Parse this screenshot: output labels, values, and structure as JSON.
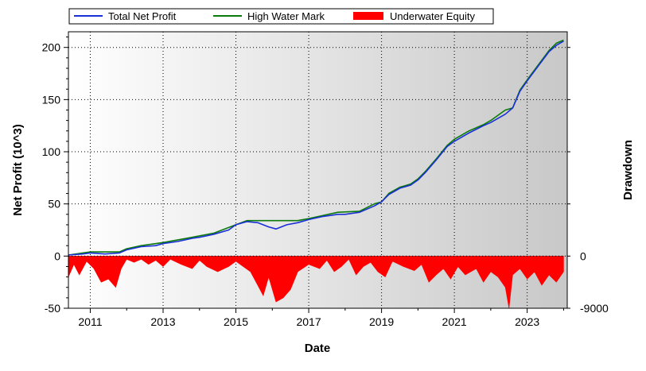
{
  "chart_data": {
    "type": "line",
    "xlabel": "Date",
    "ylabel": "Net Profit (10^3)",
    "y2label": "Drawdown",
    "x_range": [
      2010.4,
      2024.1
    ],
    "ylim": [
      -50,
      215
    ],
    "y2_ticks": [
      {
        "value": 0,
        "label": "0"
      },
      {
        "value": -9000,
        "label": "-9000"
      }
    ],
    "x_ticks": [
      "2011",
      "2013",
      "2015",
      "2017",
      "2019",
      "2021",
      "2023"
    ],
    "x_tick_years": [
      2011,
      2013,
      2015,
      2017,
      2019,
      2021,
      2023
    ],
    "y_ticks": [
      -50,
      0,
      50,
      100,
      150,
      200
    ],
    "grid": true,
    "legend_position": "top",
    "legend": [
      "Total Net Profit",
      "High Water Mark",
      "Underwater Equity"
    ],
    "colors": {
      "net_profit": "#1a2fd6",
      "high_water": "#0a7a0a",
      "underwater": "#ff0000",
      "plot_bg_left": "#ffffff",
      "plot_bg_right": "#c8c8c8"
    },
    "series": [
      {
        "name": "Total Net Profit",
        "points": [
          [
            2010.4,
            1
          ],
          [
            2010.8,
            2
          ],
          [
            2011.0,
            3
          ],
          [
            2011.4,
            2
          ],
          [
            2011.8,
            3
          ],
          [
            2012.0,
            6
          ],
          [
            2012.4,
            9
          ],
          [
            2012.8,
            10
          ],
          [
            2013.0,
            12
          ],
          [
            2013.4,
            14
          ],
          [
            2013.8,
            17
          ],
          [
            2014.0,
            18
          ],
          [
            2014.4,
            21
          ],
          [
            2014.8,
            25
          ],
          [
            2015.0,
            30
          ],
          [
            2015.3,
            33
          ],
          [
            2015.6,
            32
          ],
          [
            2015.9,
            28
          ],
          [
            2016.1,
            26
          ],
          [
            2016.4,
            30
          ],
          [
            2016.7,
            32
          ],
          [
            2017.0,
            35
          ],
          [
            2017.4,
            38
          ],
          [
            2017.8,
            40
          ],
          [
            2018.0,
            40
          ],
          [
            2018.4,
            42
          ],
          [
            2018.8,
            48
          ],
          [
            2019.0,
            52
          ],
          [
            2019.2,
            59
          ],
          [
            2019.5,
            65
          ],
          [
            2019.8,
            68
          ],
          [
            2020.0,
            73
          ],
          [
            2020.2,
            80
          ],
          [
            2020.5,
            92
          ],
          [
            2020.8,
            105
          ],
          [
            2021.0,
            110
          ],
          [
            2021.4,
            118
          ],
          [
            2021.8,
            125
          ],
          [
            2022.0,
            128
          ],
          [
            2022.4,
            136
          ],
          [
            2022.6,
            142
          ],
          [
            2022.8,
            158
          ],
          [
            2023.0,
            168
          ],
          [
            2023.3,
            182
          ],
          [
            2023.6,
            196
          ],
          [
            2023.8,
            202
          ],
          [
            2024.0,
            206
          ]
        ]
      },
      {
        "name": "High Water Mark",
        "points": [
          [
            2010.4,
            1
          ],
          [
            2011.0,
            4
          ],
          [
            2011.8,
            4
          ],
          [
            2012.0,
            7
          ],
          [
            2012.4,
            10
          ],
          [
            2013.0,
            13
          ],
          [
            2013.8,
            18
          ],
          [
            2014.4,
            22
          ],
          [
            2015.0,
            30
          ],
          [
            2015.3,
            34
          ],
          [
            2016.7,
            34
          ],
          [
            2017.0,
            36
          ],
          [
            2017.4,
            39
          ],
          [
            2017.8,
            42
          ],
          [
            2018.4,
            43
          ],
          [
            2018.8,
            50
          ],
          [
            2019.0,
            52
          ],
          [
            2019.2,
            60
          ],
          [
            2019.5,
            66
          ],
          [
            2019.8,
            69
          ],
          [
            2020.0,
            74
          ],
          [
            2020.2,
            81
          ],
          [
            2020.5,
            93
          ],
          [
            2020.8,
            106
          ],
          [
            2021.0,
            112
          ],
          [
            2021.4,
            120
          ],
          [
            2021.8,
            126
          ],
          [
            2022.0,
            130
          ],
          [
            2022.4,
            140
          ],
          [
            2022.6,
            142
          ],
          [
            2022.8,
            159
          ],
          [
            2023.0,
            169
          ],
          [
            2023.3,
            183
          ],
          [
            2023.6,
            197
          ],
          [
            2023.8,
            204
          ],
          [
            2024.0,
            207
          ]
        ]
      },
      {
        "name": "Underwater Equity",
        "points": [
          [
            2010.4,
            -20
          ],
          [
            2010.55,
            -8
          ],
          [
            2010.7,
            -18
          ],
          [
            2010.9,
            -5
          ],
          [
            2011.1,
            -12
          ],
          [
            2011.3,
            -25
          ],
          [
            2011.5,
            -22
          ],
          [
            2011.7,
            -30
          ],
          [
            2011.85,
            -12
          ],
          [
            2012.0,
            -3
          ],
          [
            2012.2,
            -6
          ],
          [
            2012.4,
            -3
          ],
          [
            2012.6,
            -8
          ],
          [
            2012.8,
            -4
          ],
          [
            2013.0,
            -10
          ],
          [
            2013.2,
            -3
          ],
          [
            2013.5,
            -8
          ],
          [
            2013.8,
            -12
          ],
          [
            2014.0,
            -4
          ],
          [
            2014.2,
            -10
          ],
          [
            2014.5,
            -15
          ],
          [
            2014.8,
            -10
          ],
          [
            2015.0,
            -5
          ],
          [
            2015.4,
            -15
          ],
          [
            2015.6,
            -28
          ],
          [
            2015.75,
            -38
          ],
          [
            2015.9,
            -20
          ],
          [
            2016.1,
            -44
          ],
          [
            2016.3,
            -40
          ],
          [
            2016.5,
            -32
          ],
          [
            2016.7,
            -15
          ],
          [
            2017.0,
            -8
          ],
          [
            2017.3,
            -12
          ],
          [
            2017.5,
            -4
          ],
          [
            2017.7,
            -15
          ],
          [
            2017.9,
            -10
          ],
          [
            2018.1,
            -3
          ],
          [
            2018.3,
            -18
          ],
          [
            2018.5,
            -10
          ],
          [
            2018.7,
            -6
          ],
          [
            2018.9,
            -15
          ],
          [
            2019.1,
            -20
          ],
          [
            2019.3,
            -5
          ],
          [
            2019.6,
            -10
          ],
          [
            2019.9,
            -14
          ],
          [
            2020.1,
            -8
          ],
          [
            2020.3,
            -25
          ],
          [
            2020.5,
            -18
          ],
          [
            2020.7,
            -12
          ],
          [
            2020.9,
            -22
          ],
          [
            2021.1,
            -10
          ],
          [
            2021.3,
            -18
          ],
          [
            2021.6,
            -12
          ],
          [
            2021.8,
            -25
          ],
          [
            2022.0,
            -15
          ],
          [
            2022.2,
            -20
          ],
          [
            2022.4,
            -30
          ],
          [
            2022.5,
            -50
          ],
          [
            2022.6,
            -18
          ],
          [
            2022.8,
            -12
          ],
          [
            2023.0,
            -22
          ],
          [
            2023.2,
            -15
          ],
          [
            2023.4,
            -28
          ],
          [
            2023.6,
            -18
          ],
          [
            2023.8,
            -25
          ],
          [
            2024.0,
            -15
          ]
        ]
      }
    ]
  }
}
